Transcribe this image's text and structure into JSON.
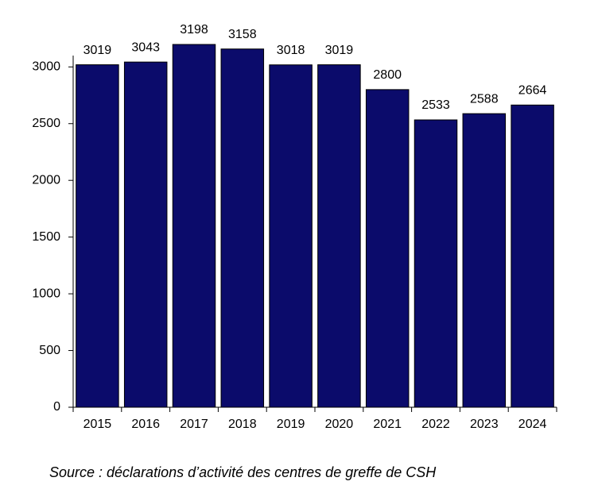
{
  "chart_data": {
    "type": "bar",
    "categories": [
      "2015",
      "2016",
      "2017",
      "2018",
      "2019",
      "2020",
      "2021",
      "2022",
      "2023",
      "2024"
    ],
    "values": [
      3019,
      3043,
      3198,
      3158,
      3018,
      3019,
      2800,
      2533,
      2588,
      2664
    ],
    "color": "#0b0b6b",
    "ylim": [
      0,
      3100
    ],
    "yticks": [
      0,
      500,
      1000,
      1500,
      2000,
      2500,
      3000
    ],
    "grid": false,
    "source": "Source : déclarations d’activité des centres de greffe de CSH"
  }
}
